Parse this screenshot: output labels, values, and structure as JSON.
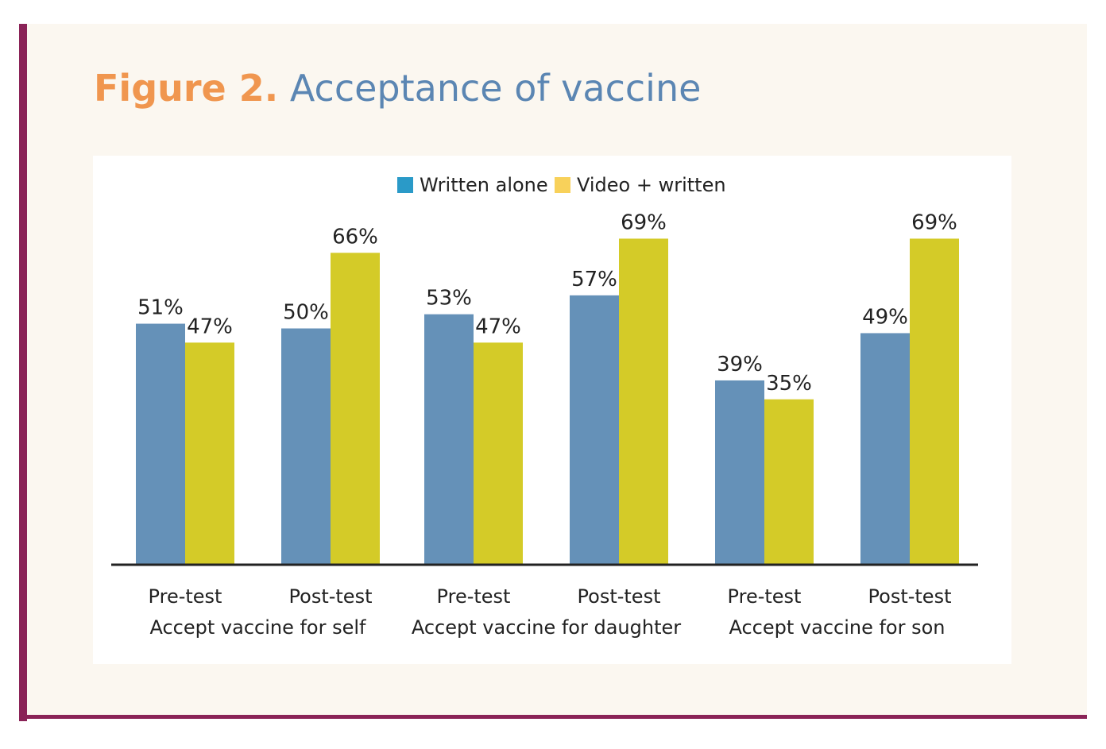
{
  "title": {
    "figure": "Figure 2.",
    "text": "Acceptance of vaccine"
  },
  "colors": {
    "written": "#6591b8",
    "video": "#d4cb28",
    "legend_written": "#2a9ac8",
    "legend_video": "#f8d15a",
    "frame": "#8a2357"
  },
  "chart_data": {
    "type": "bar",
    "title": "Acceptance of vaccine",
    "xlabel": "",
    "ylabel": "",
    "ylim": [
      0,
      70
    ],
    "legend_position": "top-center",
    "grid": false,
    "groups": [
      "Accept vaccine for self",
      "Accept vaccine for daughter",
      "Accept vaccine for son"
    ],
    "categories": [
      "Pre-test",
      "Post-test",
      "Pre-test",
      "Post-test",
      "Pre-test",
      "Post-test"
    ],
    "series": [
      {
        "name": "Written alone",
        "values": [
          51,
          50,
          53,
          57,
          39,
          49
        ],
        "labels": [
          "51%",
          "50%",
          "53%",
          "57%",
          "39%",
          "49%"
        ]
      },
      {
        "name": "Video + written",
        "values": [
          47,
          66,
          47,
          69,
          35,
          69
        ],
        "labels": [
          "47%",
          "66%",
          "47%",
          "69%",
          "35%",
          "69%"
        ]
      }
    ]
  }
}
